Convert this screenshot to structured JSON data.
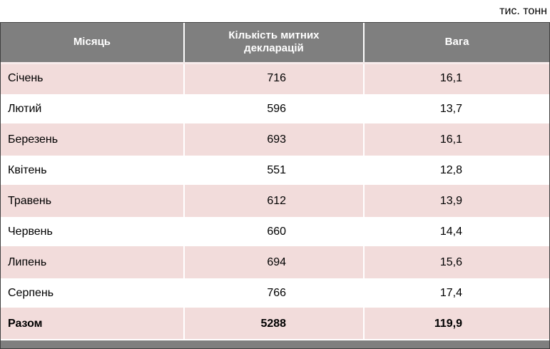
{
  "unit_label": "тис. тонн",
  "table": {
    "headers": [
      "Місяць",
      "Кількість митних декларацій",
      "Вага"
    ],
    "rows": [
      {
        "month": "Січень",
        "declarations": "716",
        "weight": "16,1",
        "total": false
      },
      {
        "month": "Лютий",
        "declarations": "596",
        "weight": "13,7",
        "total": false
      },
      {
        "month": "Березень",
        "declarations": "693",
        "weight": "16,1",
        "total": false
      },
      {
        "month": "Квітень",
        "declarations": "551",
        "weight": "12,8",
        "total": false
      },
      {
        "month": "Травень",
        "declarations": "612",
        "weight": "13,9",
        "total": false
      },
      {
        "month": "Червень",
        "declarations": "660",
        "weight": "14,4",
        "total": false
      },
      {
        "month": "Липень",
        "declarations": "694",
        "weight": "15,6",
        "total": false
      },
      {
        "month": "Серпень",
        "declarations": "766",
        "weight": "17,4",
        "total": false
      },
      {
        "month": "Разом",
        "declarations": "5288",
        "weight": "119,9",
        "total": true
      }
    ]
  },
  "chart_data": {
    "type": "table",
    "title": "тис. тонн",
    "columns": [
      "Місяць",
      "Кількість митних декларацій",
      "Вага"
    ],
    "rows": [
      [
        "Січень",
        716,
        16.1
      ],
      [
        "Лютий",
        596,
        13.7
      ],
      [
        "Березень",
        693,
        16.1
      ],
      [
        "Квітень",
        551,
        12.8
      ],
      [
        "Травень",
        612,
        13.9
      ],
      [
        "Червень",
        660,
        14.4
      ],
      [
        "Липень",
        694,
        15.6
      ],
      [
        "Серпень",
        766,
        17.4
      ],
      [
        "Разом",
        5288,
        119.9
      ]
    ],
    "totals_row": "Разом",
    "layout": {
      "header_shaded": true,
      "banded_rows": true
    }
  },
  "colors": {
    "header_bg": "#7f7f7f",
    "header_text": "#ffffff",
    "band_bg": "#f2dcdb",
    "text": "#000000"
  }
}
